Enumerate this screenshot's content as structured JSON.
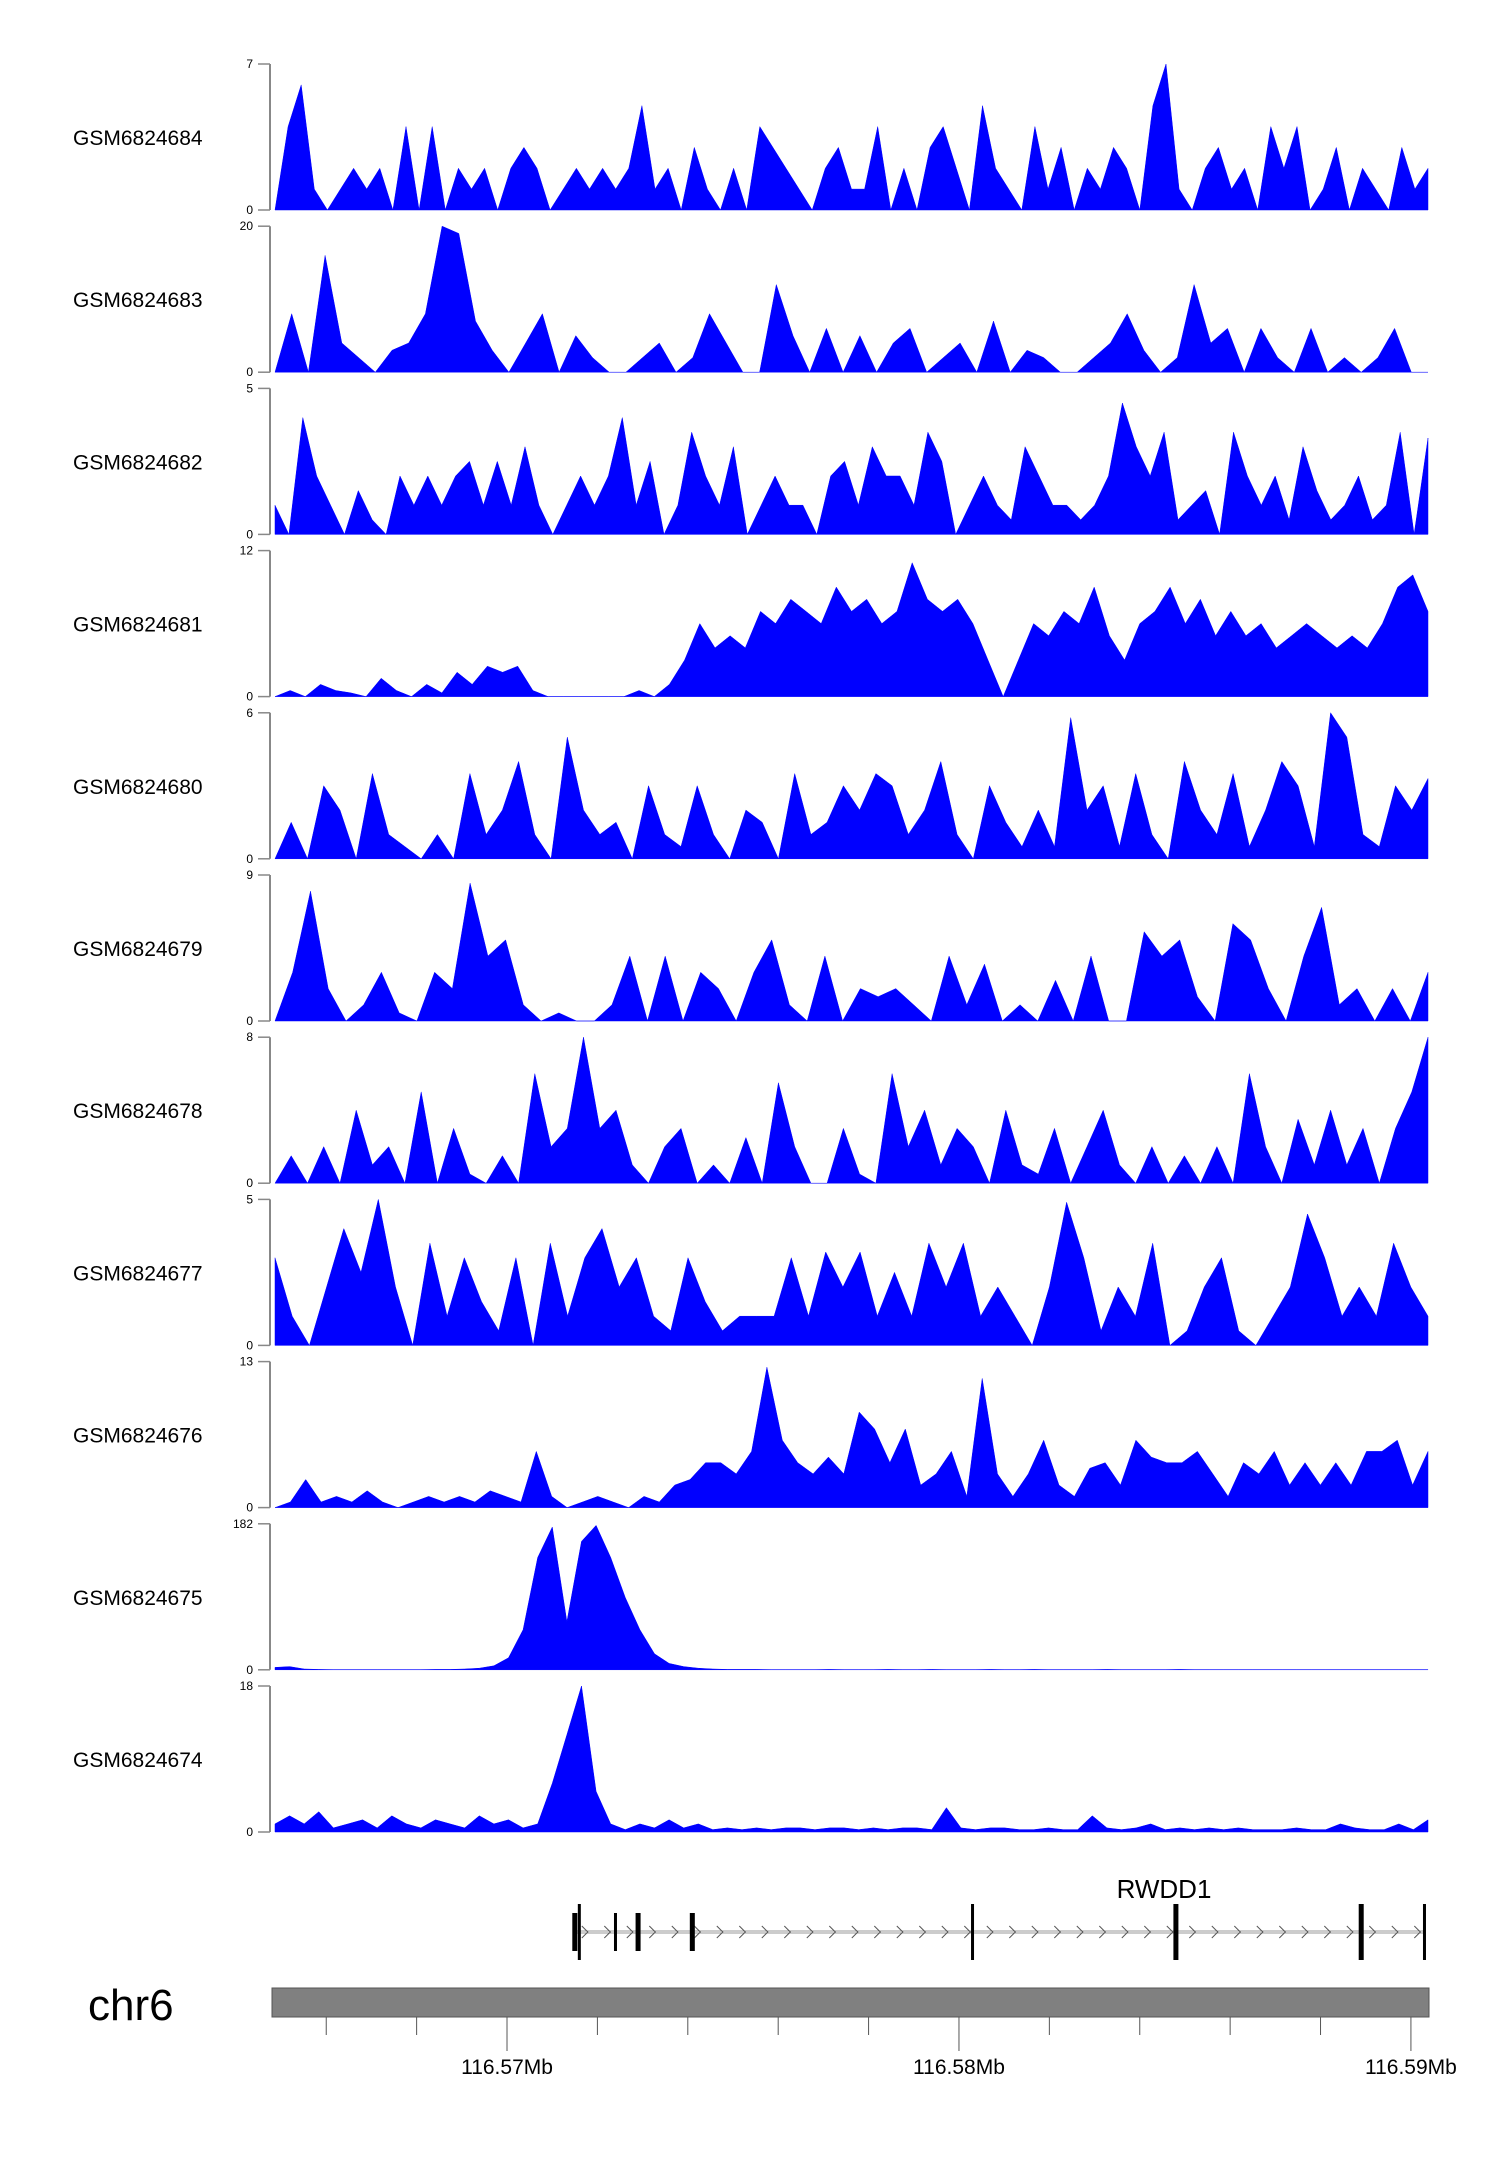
{
  "chart_data": {
    "type": "area",
    "xlim": [
      116.5648,
      116.5904
    ],
    "fill_color": "#0000FF",
    "chromosome": "chr6",
    "x_ticks": [
      116.564,
      116.566,
      116.568,
      116.57,
      116.572,
      116.574,
      116.576,
      116.578,
      116.58,
      116.582,
      116.584,
      116.586,
      116.588,
      116.59
    ],
    "x_tick_labels": [
      {
        "value": 116.57,
        "label": "116.57Mb"
      },
      {
        "value": 116.58,
        "label": "116.58Mb"
      },
      {
        "value": 116.59,
        "label": "116.59Mb"
      }
    ],
    "gene": {
      "name": "RWDD1",
      "start": 116.5715,
      "end": 116.5903,
      "strand": "+",
      "exons": [
        {
          "pos": 116.5715,
          "tall": false,
          "thick": true
        },
        {
          "pos": 116.5716,
          "tall": true,
          "thick": false
        },
        {
          "pos": 116.5724,
          "tall": false,
          "thick": false
        },
        {
          "pos": 116.5729,
          "tall": false,
          "thick": true
        },
        {
          "pos": 116.5741,
          "tall": false,
          "thick": true
        },
        {
          "pos": 116.5803,
          "tall": true,
          "thick": false
        },
        {
          "pos": 116.5848,
          "tall": true,
          "thick": true
        },
        {
          "pos": 116.5889,
          "tall": true,
          "thick": true
        },
        {
          "pos": 116.5903,
          "tall": true,
          "thick": false
        }
      ]
    },
    "series": [
      {
        "name": "GSM6824684",
        "ylim": [
          0,
          7
        ],
        "values": [
          0,
          4,
          6,
          1,
          0,
          1,
          2,
          1,
          2,
          0,
          4,
          0,
          4,
          0,
          2,
          1,
          2,
          0,
          2,
          3,
          2,
          0,
          1,
          2,
          1,
          2,
          1,
          2,
          5,
          1,
          2,
          0,
          3,
          1,
          0,
          2,
          0,
          4,
          3,
          2,
          1,
          0,
          2,
          3,
          1,
          1,
          4,
          0,
          2,
          0,
          3,
          4,
          2,
          0,
          5,
          2,
          1,
          0,
          4,
          1,
          3,
          0,
          2,
          1,
          3,
          2,
          0,
          5,
          7,
          1,
          0,
          2,
          3,
          1,
          2,
          0,
          4,
          2,
          4,
          0,
          1,
          3,
          0,
          2,
          1,
          0,
          3,
          1,
          2
        ]
      },
      {
        "name": "GSM6824683",
        "ylim": [
          0,
          20
        ],
        "values": [
          0,
          8,
          0,
          16,
          4,
          2,
          0,
          3,
          4,
          8,
          20,
          19,
          7,
          3,
          0,
          4,
          8,
          0,
          5,
          2,
          0,
          0,
          2,
          4,
          0,
          2,
          8,
          4,
          0,
          0,
          12,
          5,
          0,
          6,
          0,
          5,
          0,
          4,
          6,
          0,
          2,
          4,
          0,
          7,
          0,
          3,
          2,
          0,
          0,
          2,
          4,
          8,
          3,
          0,
          2,
          12,
          4,
          6,
          0,
          6,
          2,
          0,
          6,
          0,
          2,
          0,
          2,
          6,
          0,
          0
        ]
      },
      {
        "name": "GSM6824682",
        "ylim": [
          0,
          5
        ],
        "values": [
          1,
          0,
          4,
          2,
          1,
          0,
          1.5,
          0.5,
          0,
          2,
          1,
          2,
          1,
          2,
          2.5,
          1,
          2.5,
          1,
          3,
          1,
          0,
          1,
          2,
          1,
          2,
          4,
          1,
          2.5,
          0,
          1,
          3.5,
          2,
          1,
          3,
          0,
          1,
          2,
          1,
          1,
          0,
          2,
          2.5,
          1,
          3,
          2,
          2,
          1,
          3.5,
          2.5,
          0,
          1,
          2,
          1,
          0.5,
          3,
          2,
          1,
          1,
          0.5,
          1,
          2,
          4.5,
          3,
          2,
          3.5,
          0.5,
          1,
          1.5,
          0,
          3.5,
          2,
          1,
          2,
          0.5,
          3,
          1.5,
          0.5,
          1,
          2,
          0.5,
          1,
          3.5,
          0,
          3.3
        ]
      },
      {
        "name": "GSM6824681",
        "ylim": [
          0,
          12
        ],
        "values": [
          0,
          0.5,
          0,
          1,
          0.5,
          0.3,
          0,
          1.5,
          0.5,
          0,
          1,
          0.3,
          2,
          1,
          2.5,
          2,
          2.5,
          0.5,
          0,
          0,
          0,
          0,
          0,
          0,
          0.5,
          0,
          1,
          3,
          6,
          4,
          5,
          4,
          7,
          6,
          8,
          7,
          6,
          9,
          7,
          8,
          6,
          7,
          11,
          8,
          7,
          8,
          6,
          3,
          0,
          3,
          6,
          5,
          7,
          6,
          9,
          5,
          3,
          6,
          7,
          9,
          6,
          8,
          5,
          7,
          5,
          6,
          4,
          5,
          6,
          5,
          4,
          5,
          4,
          6,
          9,
          10,
          7
        ]
      },
      {
        "name": "GSM6824680",
        "ylim": [
          0,
          6
        ],
        "values": [
          0,
          1.5,
          0,
          3,
          2,
          0,
          3.5,
          1,
          0.5,
          0,
          1,
          0,
          3.5,
          1,
          2,
          4,
          1,
          0,
          5,
          2,
          1,
          1.5,
          0,
          3,
          1,
          0.5,
          3,
          1,
          0,
          2,
          1.5,
          0,
          3.5,
          1,
          1.5,
          3,
          2,
          3.5,
          3,
          1,
          2,
          4,
          1,
          0,
          3,
          1.5,
          0.5,
          2,
          0.5,
          5.8,
          2,
          3,
          0.5,
          3.5,
          1,
          0,
          4,
          2,
          1,
          3.5,
          0.5,
          2,
          4,
          3,
          0.5,
          6,
          5,
          1,
          0.5,
          3,
          2,
          3.3
        ]
      },
      {
        "name": "GSM6824679",
        "ylim": [
          0,
          9
        ],
        "values": [
          0,
          3,
          8,
          2,
          0,
          1,
          3,
          0.5,
          0,
          3,
          2,
          8.5,
          4,
          5,
          1,
          0,
          0.5,
          0,
          0,
          1,
          4,
          0,
          4,
          0,
          3,
          2,
          0,
          3,
          5,
          1,
          0,
          4,
          0,
          2,
          1.5,
          2,
          1,
          0,
          4,
          1,
          3.5,
          0,
          1,
          0,
          2.5,
          0,
          4,
          0,
          0,
          5.5,
          4,
          5,
          1.5,
          0,
          6,
          5,
          2,
          0,
          4,
          7,
          1,
          2,
          0,
          2,
          0,
          3
        ]
      },
      {
        "name": "GSM6824678",
        "ylim": [
          0,
          8
        ],
        "values": [
          0,
          1.5,
          0,
          2,
          0,
          4,
          1,
          2,
          0,
          5,
          0,
          3,
          0.5,
          0,
          1.5,
          0,
          6,
          2,
          3,
          8,
          3,
          4,
          1,
          0,
          2,
          3,
          0,
          1,
          0,
          2.5,
          0,
          5.5,
          2,
          0,
          0,
          3,
          0.5,
          0,
          6,
          2,
          4,
          1,
          3,
          2,
          0,
          4,
          1,
          0.5,
          3,
          0,
          2,
          4,
          1,
          0,
          2,
          0,
          1.5,
          0,
          2,
          0,
          6,
          2,
          0,
          3.5,
          1,
          4,
          1,
          3,
          0,
          3,
          5,
          8
        ]
      },
      {
        "name": "GSM6824677",
        "ylim": [
          0,
          5
        ],
        "values": [
          3,
          1,
          0,
          2,
          4,
          2.5,
          5,
          2,
          0,
          3.5,
          1,
          3,
          1.5,
          0.5,
          3,
          0,
          3.5,
          1,
          3,
          4,
          2,
          3,
          1,
          0.5,
          3,
          1.5,
          0.5,
          1,
          1,
          1,
          3,
          1,
          3.2,
          2,
          3.2,
          1,
          2.5,
          1,
          3.5,
          2,
          3.5,
          1,
          2,
          1,
          0,
          2,
          4.9,
          3,
          0.5,
          2,
          1,
          3.5,
          0,
          0.5,
          2,
          3,
          0.5,
          0,
          1,
          2,
          4.5,
          3,
          1,
          2,
          1,
          3.5,
          2,
          1
        ]
      },
      {
        "name": "GSM6824676",
        "ylim": [
          0,
          13
        ],
        "values": [
          0,
          0.5,
          2.5,
          0.5,
          1,
          0.5,
          1.5,
          0.5,
          0,
          0.5,
          1,
          0.5,
          1,
          0.5,
          1.5,
          1,
          0.5,
          5,
          1,
          0,
          0.5,
          1,
          0.5,
          0,
          1,
          0.5,
          2,
          2.5,
          4,
          4,
          3,
          5,
          12.5,
          6,
          4,
          3,
          4.5,
          3,
          8.5,
          7,
          4,
          7,
          2,
          3,
          5,
          1,
          11.5,
          3,
          1,
          3,
          6,
          2,
          1,
          3.5,
          4,
          2,
          6,
          4.5,
          4,
          4,
          5,
          3,
          1,
          4,
          3,
          5,
          2,
          4,
          2,
          4,
          2,
          5,
          5,
          6,
          2,
          5
        ]
      },
      {
        "name": "GSM6824675",
        "ylim": [
          0,
          182
        ],
        "values": [
          3,
          4,
          1,
          0.5,
          0.3,
          0.3,
          0.3,
          0.3,
          0.3,
          0.3,
          0.3,
          0.5,
          0.5,
          1,
          2,
          5,
          15,
          50,
          140,
          178,
          60,
          160,
          180,
          140,
          90,
          50,
          20,
          8,
          4,
          2,
          1,
          0.5,
          0.5,
          0.5,
          0.3,
          0.3,
          0.3,
          0.3,
          0.5,
          0.3,
          0.3,
          0.3,
          0.5,
          0.3,
          0.3,
          0.5,
          0.3,
          0.3,
          0.3,
          0.5,
          0.3,
          0.3,
          0.5,
          0.3,
          0.3,
          0.3,
          0.3,
          0.5,
          0.3,
          0.3,
          0.3,
          0.3,
          0.5,
          0.3,
          0.3,
          0.3,
          0.3,
          0.3,
          0.3,
          0.3,
          0.3,
          0.3,
          0.3,
          0.3,
          0.3,
          0.3,
          0.3,
          0.3,
          0.3,
          0.3
        ]
      },
      {
        "name": "GSM6824674",
        "ylim": [
          0,
          18
        ],
        "values": [
          1,
          2,
          1,
          2.5,
          0.5,
          1,
          1.5,
          0.5,
          2,
          1,
          0.5,
          1.5,
          1,
          0.5,
          2,
          1,
          1.5,
          0.5,
          1,
          6,
          12,
          18,
          5,
          1,
          0.3,
          1,
          0.5,
          1.5,
          0.5,
          1,
          0.3,
          0.5,
          0.3,
          0.5,
          0.3,
          0.5,
          0.5,
          0.3,
          0.5,
          0.5,
          0.3,
          0.5,
          0.3,
          0.5,
          0.5,
          0.3,
          3,
          0.5,
          0.3,
          0.5,
          0.5,
          0.3,
          0.3,
          0.5,
          0.3,
          0.3,
          2,
          0.5,
          0.3,
          0.5,
          1,
          0.3,
          0.5,
          0.3,
          0.5,
          0.3,
          0.5,
          0.3,
          0.3,
          0.3,
          0.5,
          0.3,
          0.3,
          1,
          0.5,
          0.3,
          0.3,
          1,
          0.3,
          1.5
        ]
      }
    ]
  }
}
